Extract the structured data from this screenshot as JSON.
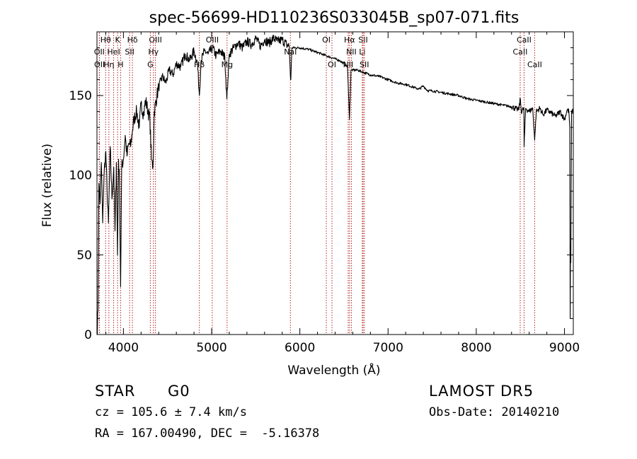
{
  "chart_data": {
    "type": "line",
    "title": "spec-56699-HD110236S033045B_sp07-071.fits",
    "xlabel": "Wavelength (Å)",
    "ylabel": "Flux (relative)",
    "xlim": [
      3700,
      9100
    ],
    "ylim": [
      0,
      190
    ],
    "xticks": [
      4000,
      5000,
      6000,
      7000,
      8000,
      9000
    ],
    "yticks": [
      0,
      50,
      100,
      150
    ],
    "grid": false,
    "line_color": "#000000",
    "marker_color": "#b22222",
    "series": [
      {
        "points": [
          [
            3700,
            0
          ],
          [
            3712,
            15
          ],
          [
            3722,
            95
          ],
          [
            3735,
            82
          ],
          [
            3750,
            108
          ],
          [
            3765,
            70
          ],
          [
            3780,
            100
          ],
          [
            3800,
            115
          ],
          [
            3815,
            90
          ],
          [
            3830,
            70
          ],
          [
            3850,
            118
          ],
          [
            3870,
            85
          ],
          [
            3890,
            105
          ],
          [
            3905,
            65
          ],
          [
            3920,
            108
          ],
          [
            3933,
            50
          ],
          [
            3945,
            110
          ],
          [
            3955,
            95
          ],
          [
            3968,
            30
          ],
          [
            3980,
            105
          ],
          [
            4000,
            110
          ],
          [
            4020,
            125
          ],
          [
            4040,
            112
          ],
          [
            4060,
            120
          ],
          [
            4080,
            118
          ],
          [
            4102,
            128
          ],
          [
            4120,
            135
          ],
          [
            4150,
            140
          ],
          [
            4180,
            130
          ],
          [
            4200,
            145
          ],
          [
            4230,
            138
          ],
          [
            4250,
            147
          ],
          [
            4280,
            140
          ],
          [
            4300,
            135
          ],
          [
            4318,
            110
          ],
          [
            4335,
            105
          ],
          [
            4350,
            140
          ],
          [
            4380,
            150
          ],
          [
            4400,
            155
          ],
          [
            4440,
            162
          ],
          [
            4480,
            158
          ],
          [
            4520,
            166
          ],
          [
            4560,
            163
          ],
          [
            4600,
            170
          ],
          [
            4650,
            168
          ],
          [
            4700,
            176
          ],
          [
            4750,
            172
          ],
          [
            4800,
            178
          ],
          [
            4840,
            170
          ],
          [
            4861,
            150
          ],
          [
            4880,
            172
          ],
          [
            4920,
            178
          ],
          [
            4960,
            176
          ],
          [
            5010,
            180
          ],
          [
            5050,
            175
          ],
          [
            5100,
            178
          ],
          [
            5150,
            174
          ],
          [
            5172,
            148
          ],
          [
            5185,
            160
          ],
          [
            5200,
            176
          ],
          [
            5250,
            180
          ],
          [
            5300,
            183
          ],
          [
            5350,
            180
          ],
          [
            5400,
            184
          ],
          [
            5450,
            182
          ],
          [
            5500,
            186
          ],
          [
            5550,
            181
          ],
          [
            5600,
            185
          ],
          [
            5650,
            183
          ],
          [
            5700,
            186
          ],
          [
            5750,
            184
          ],
          [
            5800,
            185
          ],
          [
            5850,
            182
          ],
          [
            5880,
            181
          ],
          [
            5892,
            163
          ],
          [
            5898,
            160
          ],
          [
            5910,
            180
          ],
          [
            6000,
            180
          ],
          [
            6100,
            179
          ],
          [
            6200,
            177
          ],
          [
            6300,
            175
          ],
          [
            6400,
            173
          ],
          [
            6450,
            172
          ],
          [
            6500,
            170
          ],
          [
            6540,
            168
          ],
          [
            6563,
            135
          ],
          [
            6580,
            166
          ],
          [
            6650,
            166
          ],
          [
            6700,
            165
          ],
          [
            6800,
            163
          ],
          [
            6900,
            162
          ],
          [
            7000,
            160
          ],
          [
            7100,
            158
          ],
          [
            7200,
            157
          ],
          [
            7300,
            155
          ],
          [
            7350,
            154
          ],
          [
            7400,
            156
          ],
          [
            7450,
            153
          ],
          [
            7500,
            153
          ],
          [
            7600,
            152
          ],
          [
            7700,
            151
          ],
          [
            7800,
            150
          ],
          [
            7900,
            148
          ],
          [
            8000,
            147
          ],
          [
            8100,
            146
          ],
          [
            8200,
            145
          ],
          [
            8300,
            144
          ],
          [
            8400,
            143
          ],
          [
            8480,
            141
          ],
          [
            8500,
            148
          ],
          [
            8510,
            140
          ],
          [
            8540,
            142
          ],
          [
            8542,
            118
          ],
          [
            8560,
            142
          ],
          [
            8600,
            140
          ],
          [
            8640,
            142
          ],
          [
            8662,
            122
          ],
          [
            8680,
            140
          ],
          [
            8720,
            142
          ],
          [
            8760,
            138
          ],
          [
            8800,
            141
          ],
          [
            8850,
            139
          ],
          [
            8900,
            137
          ],
          [
            8950,
            140
          ],
          [
            9000,
            135
          ],
          [
            9030,
            141
          ],
          [
            9050,
            140
          ],
          [
            9060,
            130
          ],
          [
            9065,
            10
          ],
          [
            9068,
            55
          ],
          [
            9072,
            45
          ],
          [
            9080,
            140
          ],
          [
            9100,
            140
          ]
        ]
      }
    ],
    "lines": [
      {
        "name": "Hθ",
        "x": 3798,
        "row": 0
      },
      {
        "name": "K",
        "x": 3934,
        "row": 0
      },
      {
        "name": "Hδ",
        "x": 4102,
        "row": 0
      },
      {
        "name": "OIII",
        "x": 4363,
        "row": 0
      },
      {
        "name": "OIII",
        "x": 5007,
        "row": 0
      },
      {
        "name": "OI",
        "x": 6300,
        "row": 0
      },
      {
        "name": "Hα",
        "x": 6563,
        "row": 0
      },
      {
        "name": "SII",
        "x": 6717,
        "row": 0
      },
      {
        "name": "CaII",
        "x": 8542,
        "row": 0
      },
      {
        "name": "OII",
        "x": 3727,
        "row": 1
      },
      {
        "name": "HeI",
        "x": 3889,
        "row": 1
      },
      {
        "name": "SII",
        "x": 4070,
        "row": 1
      },
      {
        "name": "Hγ",
        "x": 4340,
        "row": 1
      },
      {
        "name": "NaI",
        "x": 5893,
        "row": 1
      },
      {
        "name": "NII",
        "x": 6584,
        "row": 1
      },
      {
        "name": "Li",
        "x": 6708,
        "row": 1
      },
      {
        "name": "CaII",
        "x": 8498,
        "row": 1
      },
      {
        "name": "OII",
        "x": 3729,
        "row": 2
      },
      {
        "name": "Hη",
        "x": 3835,
        "row": 2
      },
      {
        "name": "H",
        "x": 3968,
        "row": 2
      },
      {
        "name": "G",
        "x": 4305,
        "row": 2
      },
      {
        "name": "Hβ",
        "x": 4861,
        "row": 2
      },
      {
        "name": "Mg",
        "x": 5175,
        "row": 2
      },
      {
        "name": "OI",
        "x": 6364,
        "row": 2
      },
      {
        "name": "NII",
        "x": 6548,
        "row": 2
      },
      {
        "name": "SII",
        "x": 6731,
        "row": 2
      },
      {
        "name": "CaII",
        "x": 8662,
        "row": 2
      }
    ]
  },
  "info": {
    "class": "STAR",
    "subclass": "G0",
    "survey": "LAMOST DR5",
    "cz": "cz = 105.6 ± 7.4 km/s",
    "obsdate": "Obs-Date: 20140210",
    "radec": "RA = 167.00490, DEC =  -5.16378"
  }
}
